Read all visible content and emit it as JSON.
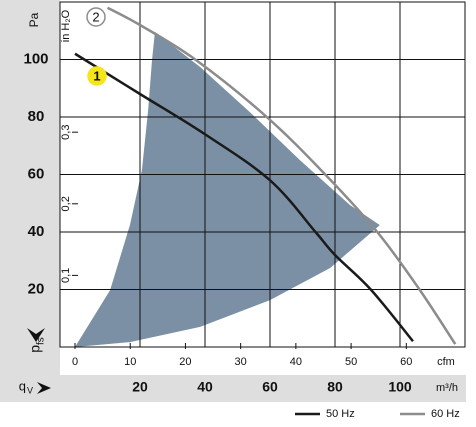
{
  "chart_data": {
    "type": "line",
    "ylabel": "Pa",
    "ylim": [
      0,
      120
    ],
    "yticks": [
      20,
      40,
      60,
      80,
      100
    ],
    "y2label": "in H₂O",
    "y2lim": [
      0,
      0.4818
    ],
    "y2ticks": [
      {
        "value": 0.1,
        "label": "0,1"
      },
      {
        "value": 0.2,
        "label": "0,2"
      },
      {
        "value": 0.3,
        "label": "0,3"
      }
    ],
    "y_symbol": "p",
    "y_symbol_sub": "fs",
    "xlabel": "m³/h",
    "xlim": [
      0,
      120
    ],
    "xticks": [
      20,
      40,
      60,
      80,
      100
    ],
    "x_symbol": "q",
    "x_symbol_sub": "V",
    "x2label": "cfm",
    "x2lim": [
      0,
      70.63
    ],
    "x2ticks": [
      0,
      10,
      20,
      30,
      40,
      50,
      60
    ],
    "grid": true,
    "range": {
      "color": "#7b90a4",
      "x": [
        0,
        10.8,
        16.9,
        20.6,
        22.5,
        23.7,
        24.6,
        38.5,
        53.8,
        69.2,
        84.6,
        93.8,
        78.5,
        60,
        38.5,
        16.9
      ],
      "y": [
        0,
        19.8,
        42.4,
        61.6,
        82.4,
        99.8,
        109.6,
        97.4,
        81.7,
        65,
        49.4,
        42.4,
        27.5,
        16.3,
        7,
        1.7
      ]
    },
    "series": [
      {
        "name": "50 Hz",
        "color": "#1a1a1a",
        "badge": "1",
        "x": [
          0,
          20,
          40,
          60,
          74,
          80,
          91,
          104
        ],
        "values": [
          102,
          88,
          74,
          58,
          40,
          32,
          20,
          2
        ]
      },
      {
        "name": "60 Hz",
        "color": "#8c8c8c",
        "badge": "2",
        "x": [
          10,
          20,
          37,
          59,
          77,
          93,
          106,
          117
        ],
        "values": [
          118,
          112,
          100,
          80,
          60,
          40,
          20,
          1
        ]
      }
    ]
  }
}
